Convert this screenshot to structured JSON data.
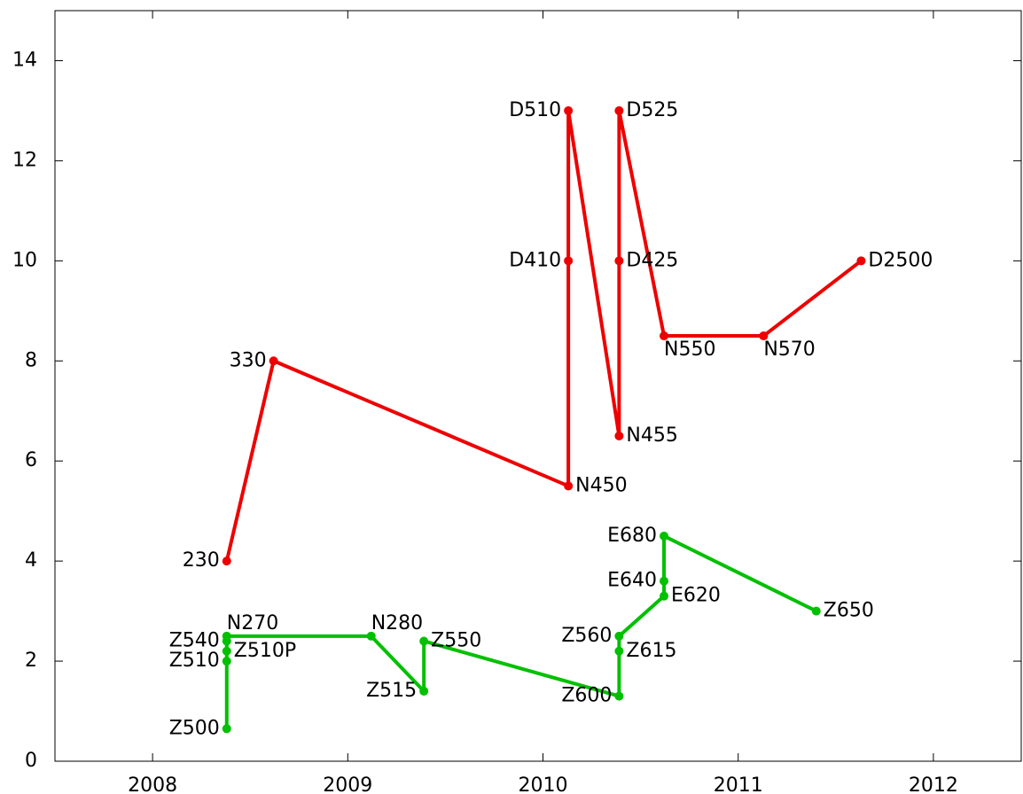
{
  "chart_data": {
    "type": "line",
    "xlim": [
      2007.5,
      2012.45
    ],
    "xticks": [
      2008,
      2009,
      2010,
      2011,
      2012
    ],
    "ylim": [
      0,
      15
    ],
    "yticks": [
      0,
      2,
      4,
      6,
      8,
      10,
      12,
      14
    ],
    "series": [
      {
        "color": "#ee0000",
        "labels": [
          "230",
          "330",
          "N450",
          "D410",
          "D510",
          "N455",
          "D425",
          "D525",
          "N550",
          "N570",
          "D2500"
        ],
        "x": [
          2008.38,
          2008.62,
          2010.13,
          2010.13,
          2010.13,
          2010.39,
          2010.39,
          2010.39,
          2010.62,
          2011.13,
          2011.63
        ],
        "values": [
          4,
          8,
          5.5,
          10,
          13,
          6.5,
          10,
          13,
          8.5,
          8.5,
          10
        ]
      },
      {
        "color": "#00c000",
        "labels": [
          "Z500",
          "Z510",
          "Z510P",
          "Z540",
          "N270",
          "N280",
          "Z515",
          "Z550",
          "Z600",
          "Z615",
          "Z560",
          "E620",
          "E640",
          "E680",
          "Z650"
        ],
        "x": [
          2008.38,
          2008.38,
          2008.38,
          2008.38,
          2008.38,
          2009.12,
          2009.39,
          2009.39,
          2010.39,
          2010.39,
          2010.39,
          2010.62,
          2010.62,
          2010.62,
          2011.4
        ],
        "values": [
          0.65,
          2.0,
          2.2,
          2.4,
          2.5,
          2.5,
          1.4,
          2.4,
          1.3,
          2.2,
          2.5,
          3.3,
          3.6,
          4.5,
          3.0
        ]
      }
    ]
  }
}
